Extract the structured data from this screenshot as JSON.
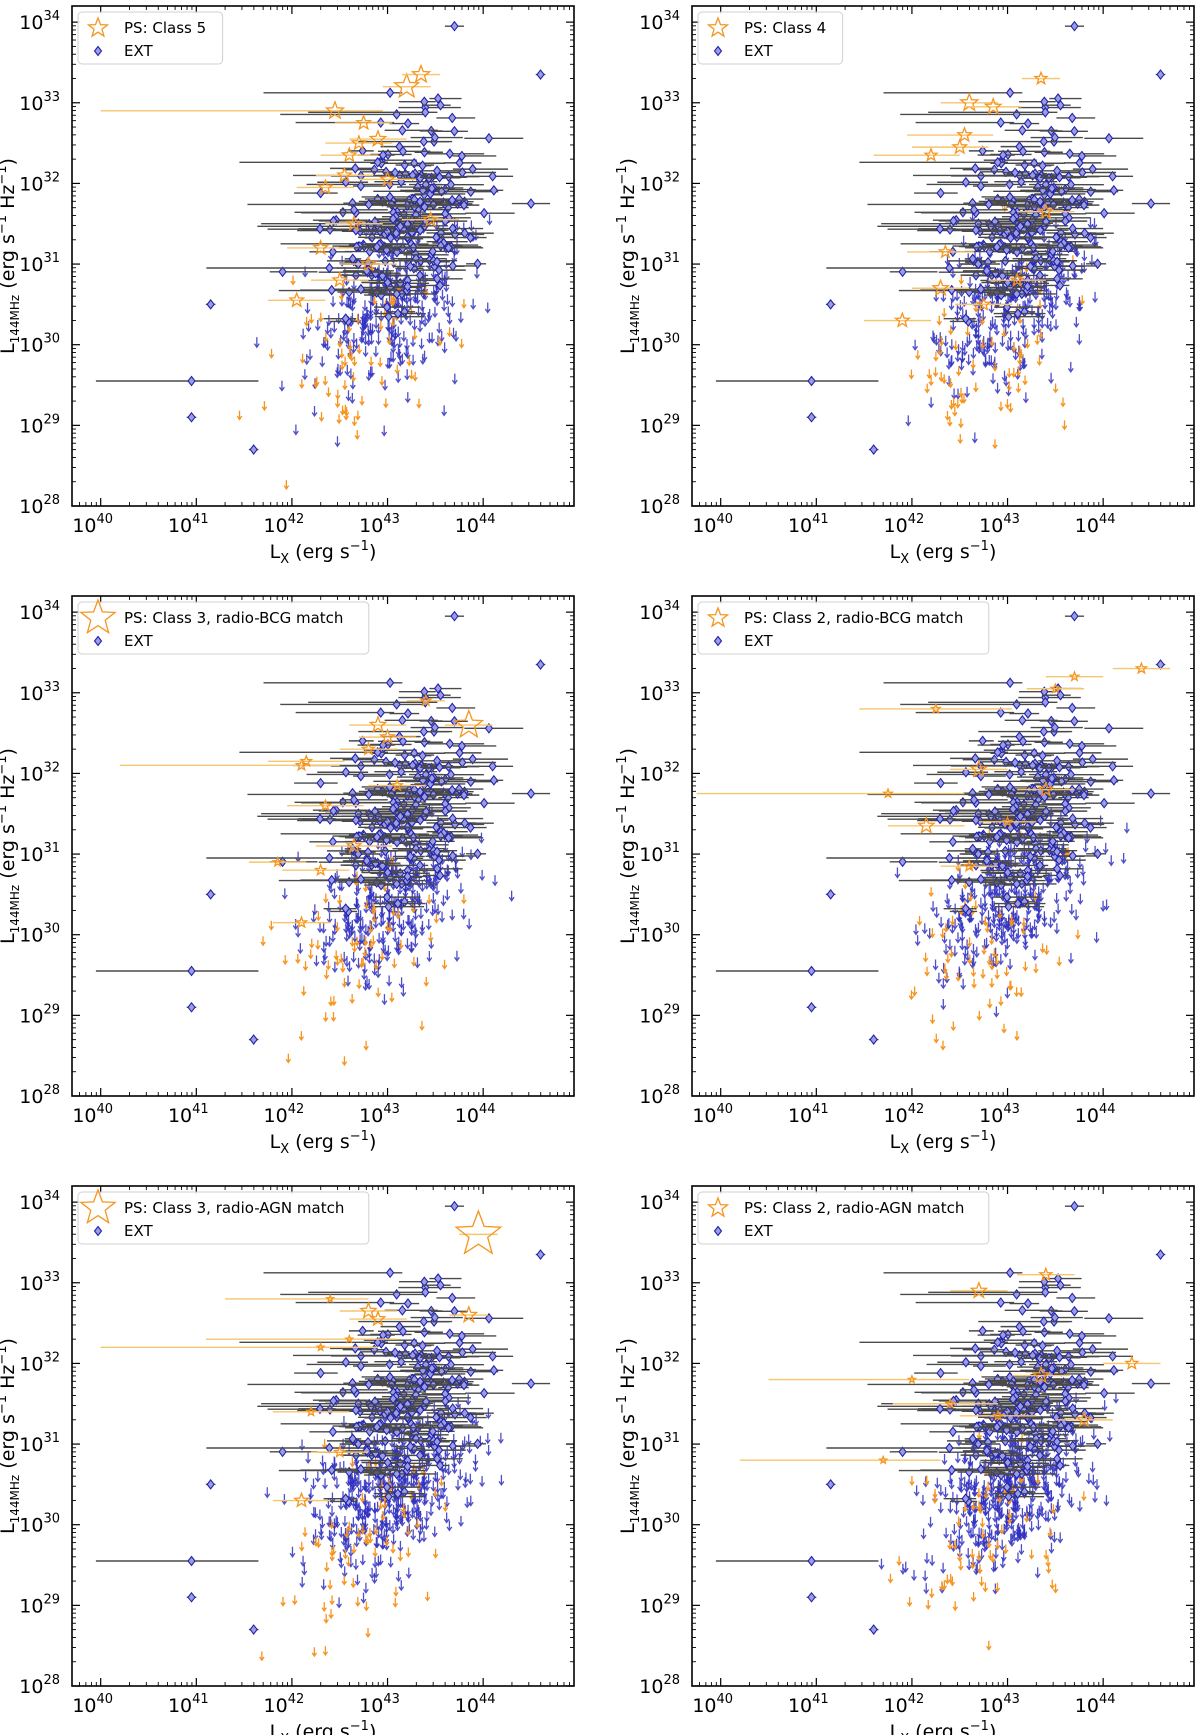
{
  "figure": {
    "panel_count": 6,
    "layout": "3 rows x 2 columns"
  },
  "colors": {
    "ps": "#f7941d",
    "ps_error": "#f7c56b",
    "ext": "#2222aa",
    "ext_fill": "#9a9ee0",
    "ext_error": "#4a4a4a",
    "upper_limit_ext": "#3030c0",
    "upper_limit_ps": "#f7941d",
    "axes": "#000000"
  },
  "shared_axes": {
    "x_scale": "log10",
    "y_scale": "log10",
    "xlim_log10": [
      39.7,
      44.95
    ],
    "ylim_log10": [
      28,
      34.2
    ],
    "x_ticks": [
      {
        "base": "10",
        "exp": "40",
        "log10": 40
      },
      {
        "base": "10",
        "exp": "41",
        "log10": 41
      },
      {
        "base": "10",
        "exp": "42",
        "log10": 42
      },
      {
        "base": "10",
        "exp": "43",
        "log10": 43
      },
      {
        "base": "10",
        "exp": "44",
        "log10": 44
      }
    ],
    "y_ticks": [
      {
        "base": "10",
        "exp": "28",
        "log10": 28
      },
      {
        "base": "10",
        "exp": "29",
        "log10": 29
      },
      {
        "base": "10",
        "exp": "30",
        "log10": 30
      },
      {
        "base": "10",
        "exp": "31",
        "log10": 31
      },
      {
        "base": "10",
        "exp": "32",
        "log10": 32
      },
      {
        "base": "10",
        "exp": "33",
        "log10": 33
      },
      {
        "base": "10",
        "exp": "34",
        "log10": 34
      }
    ],
    "xlabel": {
      "main": "L",
      "sub": "X",
      "units_pre": " (erg s",
      "units_sup": "−1",
      "units_post": ")"
    },
    "ylabel": {
      "main": "L",
      "sub": "144MHz",
      "units_pre": " (erg s",
      "units_sup1": "−1",
      "units_mid": " Hz",
      "units_sup2": "−1",
      "units_post": ")"
    }
  },
  "chart_data": [
    {
      "type": "scatter",
      "panel": "top-left",
      "legend_position": "top-left",
      "legend": [
        {
          "marker": "star",
          "label": "PS: Class 5"
        },
        {
          "marker": "diamond",
          "label": "EXT"
        }
      ],
      "ps_detections_log10": [
        {
          "x": 42.45,
          "y": 32.9,
          "xerr_lo": 2.45,
          "xerr_hi": 0.5,
          "size": 1.0
        },
        {
          "x": 42.7,
          "y": 32.5,
          "xerr_lo": 0.35,
          "xerr_hi": 0.35,
          "size": 0.8
        },
        {
          "x": 42.9,
          "y": 32.55,
          "xerr_lo": 0.3,
          "xerr_hi": 0.3,
          "size": 0.9
        },
        {
          "x": 43.2,
          "y": 33.2,
          "xerr_lo": 0.25,
          "xerr_hi": 0.25,
          "size": 1.4
        },
        {
          "x": 43.35,
          "y": 33.35,
          "xerr_lo": 0.2,
          "xerr_hi": 0.2,
          "size": 1.0
        },
        {
          "x": 42.6,
          "y": 32.35,
          "xerr_lo": 0.3,
          "xerr_hi": 0.3,
          "size": 0.8
        },
        {
          "x": 42.35,
          "y": 31.95,
          "xerr_lo": 0.3,
          "xerr_hi": 0.3,
          "size": 0.8
        },
        {
          "x": 42.55,
          "y": 32.1,
          "xerr_lo": 0.3,
          "xerr_hi": 0.3,
          "size": 0.8
        },
        {
          "x": 42.65,
          "y": 31.5,
          "xerr_lo": 0.3,
          "xerr_hi": 0.3,
          "size": 0.8
        },
        {
          "x": 42.3,
          "y": 31.2,
          "xerr_lo": 0.35,
          "xerr_hi": 0.35,
          "size": 0.8
        },
        {
          "x": 42.8,
          "y": 31.0,
          "xerr_lo": 0.3,
          "xerr_hi": 0.3,
          "size": 0.8
        },
        {
          "x": 42.05,
          "y": 30.55,
          "xerr_lo": 0.3,
          "xerr_hi": 0.3,
          "size": 0.8
        },
        {
          "x": 43.0,
          "y": 32.05,
          "xerr_lo": 0.3,
          "xerr_hi": 0.3,
          "size": 0.8
        },
        {
          "x": 43.45,
          "y": 31.55,
          "xerr_lo": 0.3,
          "xerr_hi": 0.3,
          "size": 0.8
        },
        {
          "x": 42.75,
          "y": 32.75,
          "xerr_lo": 0.3,
          "xerr_hi": 0.3,
          "size": 0.8
        },
        {
          "x": 42.5,
          "y": 30.8,
          "xerr_lo": 0.3,
          "xerr_hi": 0.3,
          "size": 0.8
        }
      ]
    },
    {
      "type": "scatter",
      "panel": "top-right",
      "legend_position": "top-left",
      "legend": [
        {
          "marker": "star",
          "label": "PS: Class 4"
        },
        {
          "marker": "diamond",
          "label": "EXT"
        }
      ],
      "ps_detections_log10": [
        {
          "x": 42.6,
          "y": 33.0,
          "xerr_lo": 0.3,
          "xerr_hi": 0.3,
          "size": 1.0
        },
        {
          "x": 42.85,
          "y": 32.95,
          "xerr_lo": 0.3,
          "xerr_hi": 0.3,
          "size": 0.9
        },
        {
          "x": 42.55,
          "y": 32.6,
          "xerr_lo": 0.6,
          "xerr_hi": 0.3,
          "size": 0.8
        },
        {
          "x": 42.5,
          "y": 32.45,
          "xerr_lo": 0.5,
          "xerr_hi": 0.3,
          "size": 0.8
        },
        {
          "x": 42.2,
          "y": 32.35,
          "xerr_lo": 0.6,
          "xerr_hi": 0.3,
          "size": 0.7
        },
        {
          "x": 42.35,
          "y": 31.15,
          "xerr_lo": 0.4,
          "xerr_hi": 0.3,
          "size": 0.7
        },
        {
          "x": 42.3,
          "y": 30.7,
          "xerr_lo": 0.3,
          "xerr_hi": 0.3,
          "size": 0.9
        },
        {
          "x": 41.9,
          "y": 30.3,
          "xerr_lo": 0.4,
          "xerr_hi": 0.3,
          "size": 0.8
        },
        {
          "x": 42.75,
          "y": 30.5,
          "xerr_lo": 0.3,
          "xerr_hi": 0.3,
          "size": 0.7
        },
        {
          "x": 43.4,
          "y": 31.65,
          "xerr_lo": 0.3,
          "xerr_hi": 0.3,
          "size": 0.8
        },
        {
          "x": 43.1,
          "y": 30.8,
          "xerr_lo": 0.3,
          "xerr_hi": 0.3,
          "size": 0.7
        },
        {
          "x": 43.35,
          "y": 33.3,
          "xerr_lo": 0.2,
          "xerr_hi": 0.2,
          "size": 0.7
        }
      ]
    },
    {
      "type": "scatter",
      "panel": "middle-left",
      "legend_position": "top-left",
      "legend": [
        {
          "marker": "star",
          "label": "PS: Class 3, radio-BCG match"
        },
        {
          "marker": "diamond",
          "label": "EXT"
        }
      ],
      "ps_detections_log10": [
        {
          "x": 42.1,
          "y": 32.1,
          "xerr_lo": 1.9,
          "xerr_hi": 0.4,
          "size": 0.6
        },
        {
          "x": 42.15,
          "y": 32.15,
          "xerr_lo": 0.4,
          "xerr_hi": 0.4,
          "size": 0.6
        },
        {
          "x": 42.35,
          "y": 31.6,
          "xerr_lo": 0.4,
          "xerr_hi": 0.4,
          "size": 0.6
        },
        {
          "x": 42.65,
          "y": 31.1,
          "xerr_lo": 0.4,
          "xerr_hi": 0.4,
          "size": 0.8
        },
        {
          "x": 42.9,
          "y": 32.6,
          "xerr_lo": 0.3,
          "xerr_hi": 0.3,
          "size": 0.9
        },
        {
          "x": 43.0,
          "y": 32.45,
          "xerr_lo": 0.3,
          "xerr_hi": 0.3,
          "size": 0.8
        },
        {
          "x": 42.8,
          "y": 32.3,
          "xerr_lo": 0.3,
          "xerr_hi": 0.3,
          "size": 0.7
        },
        {
          "x": 43.85,
          "y": 32.6,
          "xerr_lo": 0.25,
          "xerr_hi": 0.25,
          "size": 1.6
        },
        {
          "x": 42.3,
          "y": 30.8,
          "xerr_lo": 0.4,
          "xerr_hi": 0.3,
          "size": 0.6
        },
        {
          "x": 42.1,
          "y": 30.15,
          "xerr_lo": 0.3,
          "xerr_hi": 0.3,
          "size": 0.6
        },
        {
          "x": 41.85,
          "y": 30.9,
          "xerr_lo": 0.3,
          "xerr_hi": 0.3,
          "size": 0.5
        },
        {
          "x": 43.1,
          "y": 31.85,
          "xerr_lo": 0.3,
          "xerr_hi": 0.3,
          "size": 0.6
        },
        {
          "x": 43.4,
          "y": 32.9,
          "xerr_lo": 0.2,
          "xerr_hi": 0.2,
          "size": 0.6
        }
      ]
    },
    {
      "type": "scatter",
      "panel": "middle-right",
      "legend_position": "top-left",
      "legend": [
        {
          "marker": "star",
          "label": "PS: Class 2, radio-BCG match"
        },
        {
          "marker": "diamond",
          "label": "EXT"
        }
      ],
      "ps_detections_log10": [
        {
          "x": 41.75,
          "y": 31.75,
          "xerr_lo": 2.0,
          "xerr_hi": 0.8,
          "size": 0.5
        },
        {
          "x": 42.25,
          "y": 32.8,
          "xerr_lo": 0.8,
          "xerr_hi": 0.8,
          "size": 0.5
        },
        {
          "x": 42.7,
          "y": 32.05,
          "xerr_lo": 0.3,
          "xerr_hi": 0.3,
          "size": 0.9
        },
        {
          "x": 42.15,
          "y": 31.35,
          "xerr_lo": 0.4,
          "xerr_hi": 0.4,
          "size": 0.9
        },
        {
          "x": 43.4,
          "y": 31.8,
          "xerr_lo": 0.3,
          "xerr_hi": 0.3,
          "size": 0.8
        },
        {
          "x": 44.4,
          "y": 33.3,
          "xerr_lo": 0.3,
          "xerr_hi": 0.3,
          "size": 0.6
        },
        {
          "x": 43.5,
          "y": 33.05,
          "xerr_lo": 0.3,
          "xerr_hi": 0.3,
          "size": 0.5
        },
        {
          "x": 43.7,
          "y": 33.2,
          "xerr_lo": 0.3,
          "xerr_hi": 0.3,
          "size": 0.5
        },
        {
          "x": 42.6,
          "y": 30.85,
          "xerr_lo": 0.3,
          "xerr_hi": 0.3,
          "size": 0.6
        },
        {
          "x": 43.0,
          "y": 31.4,
          "xerr_lo": 0.3,
          "xerr_hi": 0.3,
          "size": 0.5
        }
      ]
    },
    {
      "type": "scatter",
      "panel": "bottom-left",
      "legend_position": "top-left",
      "legend": [
        {
          "marker": "star",
          "label": "PS: Class 3, radio-AGN match"
        },
        {
          "marker": "diamond",
          "label": "EXT"
        }
      ],
      "ps_detections_log10": [
        {
          "x": 43.95,
          "y": 33.6,
          "xerr_lo": 0.2,
          "xerr_hi": 0.2,
          "size": 2.6
        },
        {
          "x": 42.8,
          "y": 32.65,
          "xerr_lo": 0.3,
          "xerr_hi": 0.3,
          "size": 0.9
        },
        {
          "x": 42.9,
          "y": 32.55,
          "xerr_lo": 0.3,
          "xerr_hi": 0.3,
          "size": 0.8
        },
        {
          "x": 43.85,
          "y": 32.6,
          "xerr_lo": 0.2,
          "xerr_hi": 0.2,
          "size": 0.9
        },
        {
          "x": 42.4,
          "y": 32.8,
          "xerr_lo": 1.1,
          "xerr_hi": 0.4,
          "size": 0.4
        },
        {
          "x": 42.3,
          "y": 32.2,
          "xerr_lo": 2.3,
          "xerr_hi": 0.6,
          "size": 0.4
        },
        {
          "x": 42.6,
          "y": 32.3,
          "xerr_lo": 1.5,
          "xerr_hi": 0.5,
          "size": 0.4
        },
        {
          "x": 42.2,
          "y": 31.4,
          "xerr_lo": 0.4,
          "xerr_hi": 0.4,
          "size": 0.5
        },
        {
          "x": 42.1,
          "y": 30.3,
          "xerr_lo": 0.3,
          "xerr_hi": 0.3,
          "size": 0.8
        },
        {
          "x": 42.5,
          "y": 30.9,
          "xerr_lo": 0.3,
          "xerr_hi": 0.3,
          "size": 0.6
        }
      ]
    },
    {
      "type": "scatter",
      "panel": "bottom-right",
      "legend_position": "top-left",
      "legend": [
        {
          "marker": "star",
          "label": "PS: Class 2, radio-AGN match"
        },
        {
          "marker": "diamond",
          "label": "EXT"
        }
      ],
      "ps_detections_log10": [
        {
          "x": 42.7,
          "y": 32.9,
          "xerr_lo": 0.3,
          "xerr_hi": 0.3,
          "size": 0.9
        },
        {
          "x": 43.4,
          "y": 33.1,
          "xerr_lo": 0.3,
          "xerr_hi": 0.3,
          "size": 0.7
        },
        {
          "x": 43.35,
          "y": 31.85,
          "xerr_lo": 0.3,
          "xerr_hi": 0.3,
          "size": 0.9
        },
        {
          "x": 44.3,
          "y": 32.0,
          "xerr_lo": 0.3,
          "xerr_hi": 0.3,
          "size": 0.7
        },
        {
          "x": 42.0,
          "y": 31.8,
          "xerr_lo": 1.5,
          "xerr_hi": 0.6,
          "size": 0.4
        },
        {
          "x": 41.7,
          "y": 30.8,
          "xerr_lo": 1.5,
          "xerr_hi": 0.6,
          "size": 0.4
        },
        {
          "x": 42.4,
          "y": 31.5,
          "xerr_lo": 0.6,
          "xerr_hi": 0.5,
          "size": 0.5
        },
        {
          "x": 43.8,
          "y": 31.3,
          "xerr_lo": 0.3,
          "xerr_hi": 0.3,
          "size": 0.8
        },
        {
          "x": 42.9,
          "y": 31.35,
          "xerr_lo": 0.4,
          "xerr_hi": 0.4,
          "size": 0.5
        }
      ]
    }
  ]
}
